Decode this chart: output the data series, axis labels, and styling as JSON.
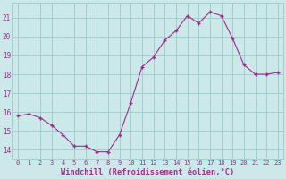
{
  "x": [
    0,
    1,
    2,
    3,
    4,
    5,
    6,
    7,
    8,
    9,
    10,
    11,
    12,
    13,
    14,
    15,
    16,
    17,
    18,
    19,
    20,
    21,
    22,
    23
  ],
  "y": [
    15.8,
    15.9,
    15.7,
    15.3,
    14.8,
    14.2,
    14.2,
    13.9,
    13.9,
    14.8,
    16.5,
    18.4,
    18.9,
    19.8,
    20.3,
    21.1,
    20.7,
    21.3,
    21.1,
    19.9,
    18.5,
    18.0,
    18.0,
    18.1
  ],
  "line_color": "#9b2d8e",
  "marker": "+",
  "marker_size": 3,
  "marker_lw": 1.0,
  "bg_color": "#cce8e8",
  "grid_color": "#99cccc",
  "xlabel": "Windchill (Refroidissement éolien,°C)",
  "xlabel_color": "#9b2d8e",
  "tick_color": "#9b2d8e",
  "ylim": [
    13.5,
    21.8
  ],
  "yticks": [
    14,
    15,
    16,
    17,
    18,
    19,
    20,
    21
  ],
  "ytick_labels": [
    "14",
    "15",
    "16",
    "17",
    "18",
    "19",
    "20",
    "21"
  ],
  "xlim": [
    -0.5,
    23.5
  ],
  "xticks": [
    0,
    1,
    2,
    3,
    4,
    5,
    6,
    7,
    8,
    9,
    10,
    11,
    12,
    13,
    14,
    15,
    16,
    17,
    18,
    19,
    20,
    21,
    22,
    23
  ],
  "xtick_labels": [
    "0",
    "1",
    "2",
    "3",
    "4",
    "5",
    "6",
    "7",
    "8",
    "9",
    "10",
    "11",
    "12",
    "13",
    "14",
    "15",
    "16",
    "17",
    "18",
    "19",
    "20",
    "21",
    "22",
    "23"
  ],
  "tick_fontsize": 5.0,
  "xlabel_fontsize": 6.2,
  "linewidth": 0.8
}
